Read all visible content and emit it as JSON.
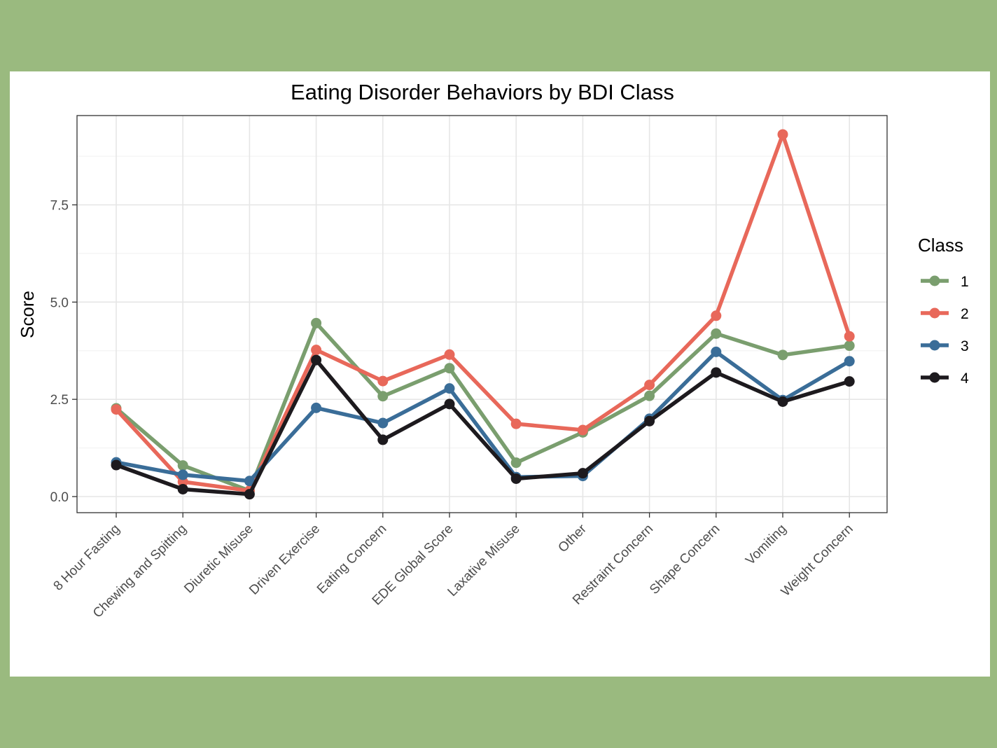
{
  "chart_data": {
    "type": "line",
    "title": "Eating Disorder Behaviors by BDI Class",
    "xlabel": "",
    "ylabel": "Score",
    "categories": [
      "8 Hour Fasting",
      "Chewing and Spitting",
      "Diuretic Misuse",
      "Driven Exercise",
      "Eating Concern",
      "EDE Global Score",
      "Laxative Misuse",
      "Other",
      "Restraint Concern",
      "Shape Concern",
      "Vomiting",
      "Weight Concern"
    ],
    "ylim": [
      -0.4,
      9.8
    ],
    "yticks": [
      0.0,
      2.5,
      5.0,
      7.5
    ],
    "ytick_labels": [
      "0.0",
      "2.5",
      "5.0",
      "7.5"
    ],
    "grid": true,
    "legend": {
      "title": "Class",
      "position": "right"
    },
    "series": [
      {
        "name": "1",
        "color": "#7a9e6e",
        "values": [
          2.27,
          0.8,
          0.15,
          4.46,
          2.58,
          3.3,
          0.87,
          1.65,
          2.59,
          4.19,
          3.64,
          3.88
        ]
      },
      {
        "name": "2",
        "color": "#e8685a",
        "values": [
          2.24,
          0.38,
          0.15,
          3.77,
          2.97,
          3.65,
          1.87,
          1.71,
          2.87,
          4.65,
          9.31,
          4.12
        ]
      },
      {
        "name": "3",
        "color": "#3a6d98",
        "values": [
          0.88,
          0.56,
          0.4,
          2.28,
          1.89,
          2.78,
          0.5,
          0.53,
          2.0,
          3.72,
          2.48,
          3.48
        ]
      },
      {
        "name": "4",
        "color": "#1d1a1e",
        "values": [
          0.81,
          0.19,
          0.06,
          3.51,
          1.46,
          2.38,
          0.46,
          0.6,
          1.94,
          3.19,
          2.44,
          2.96
        ]
      }
    ]
  }
}
